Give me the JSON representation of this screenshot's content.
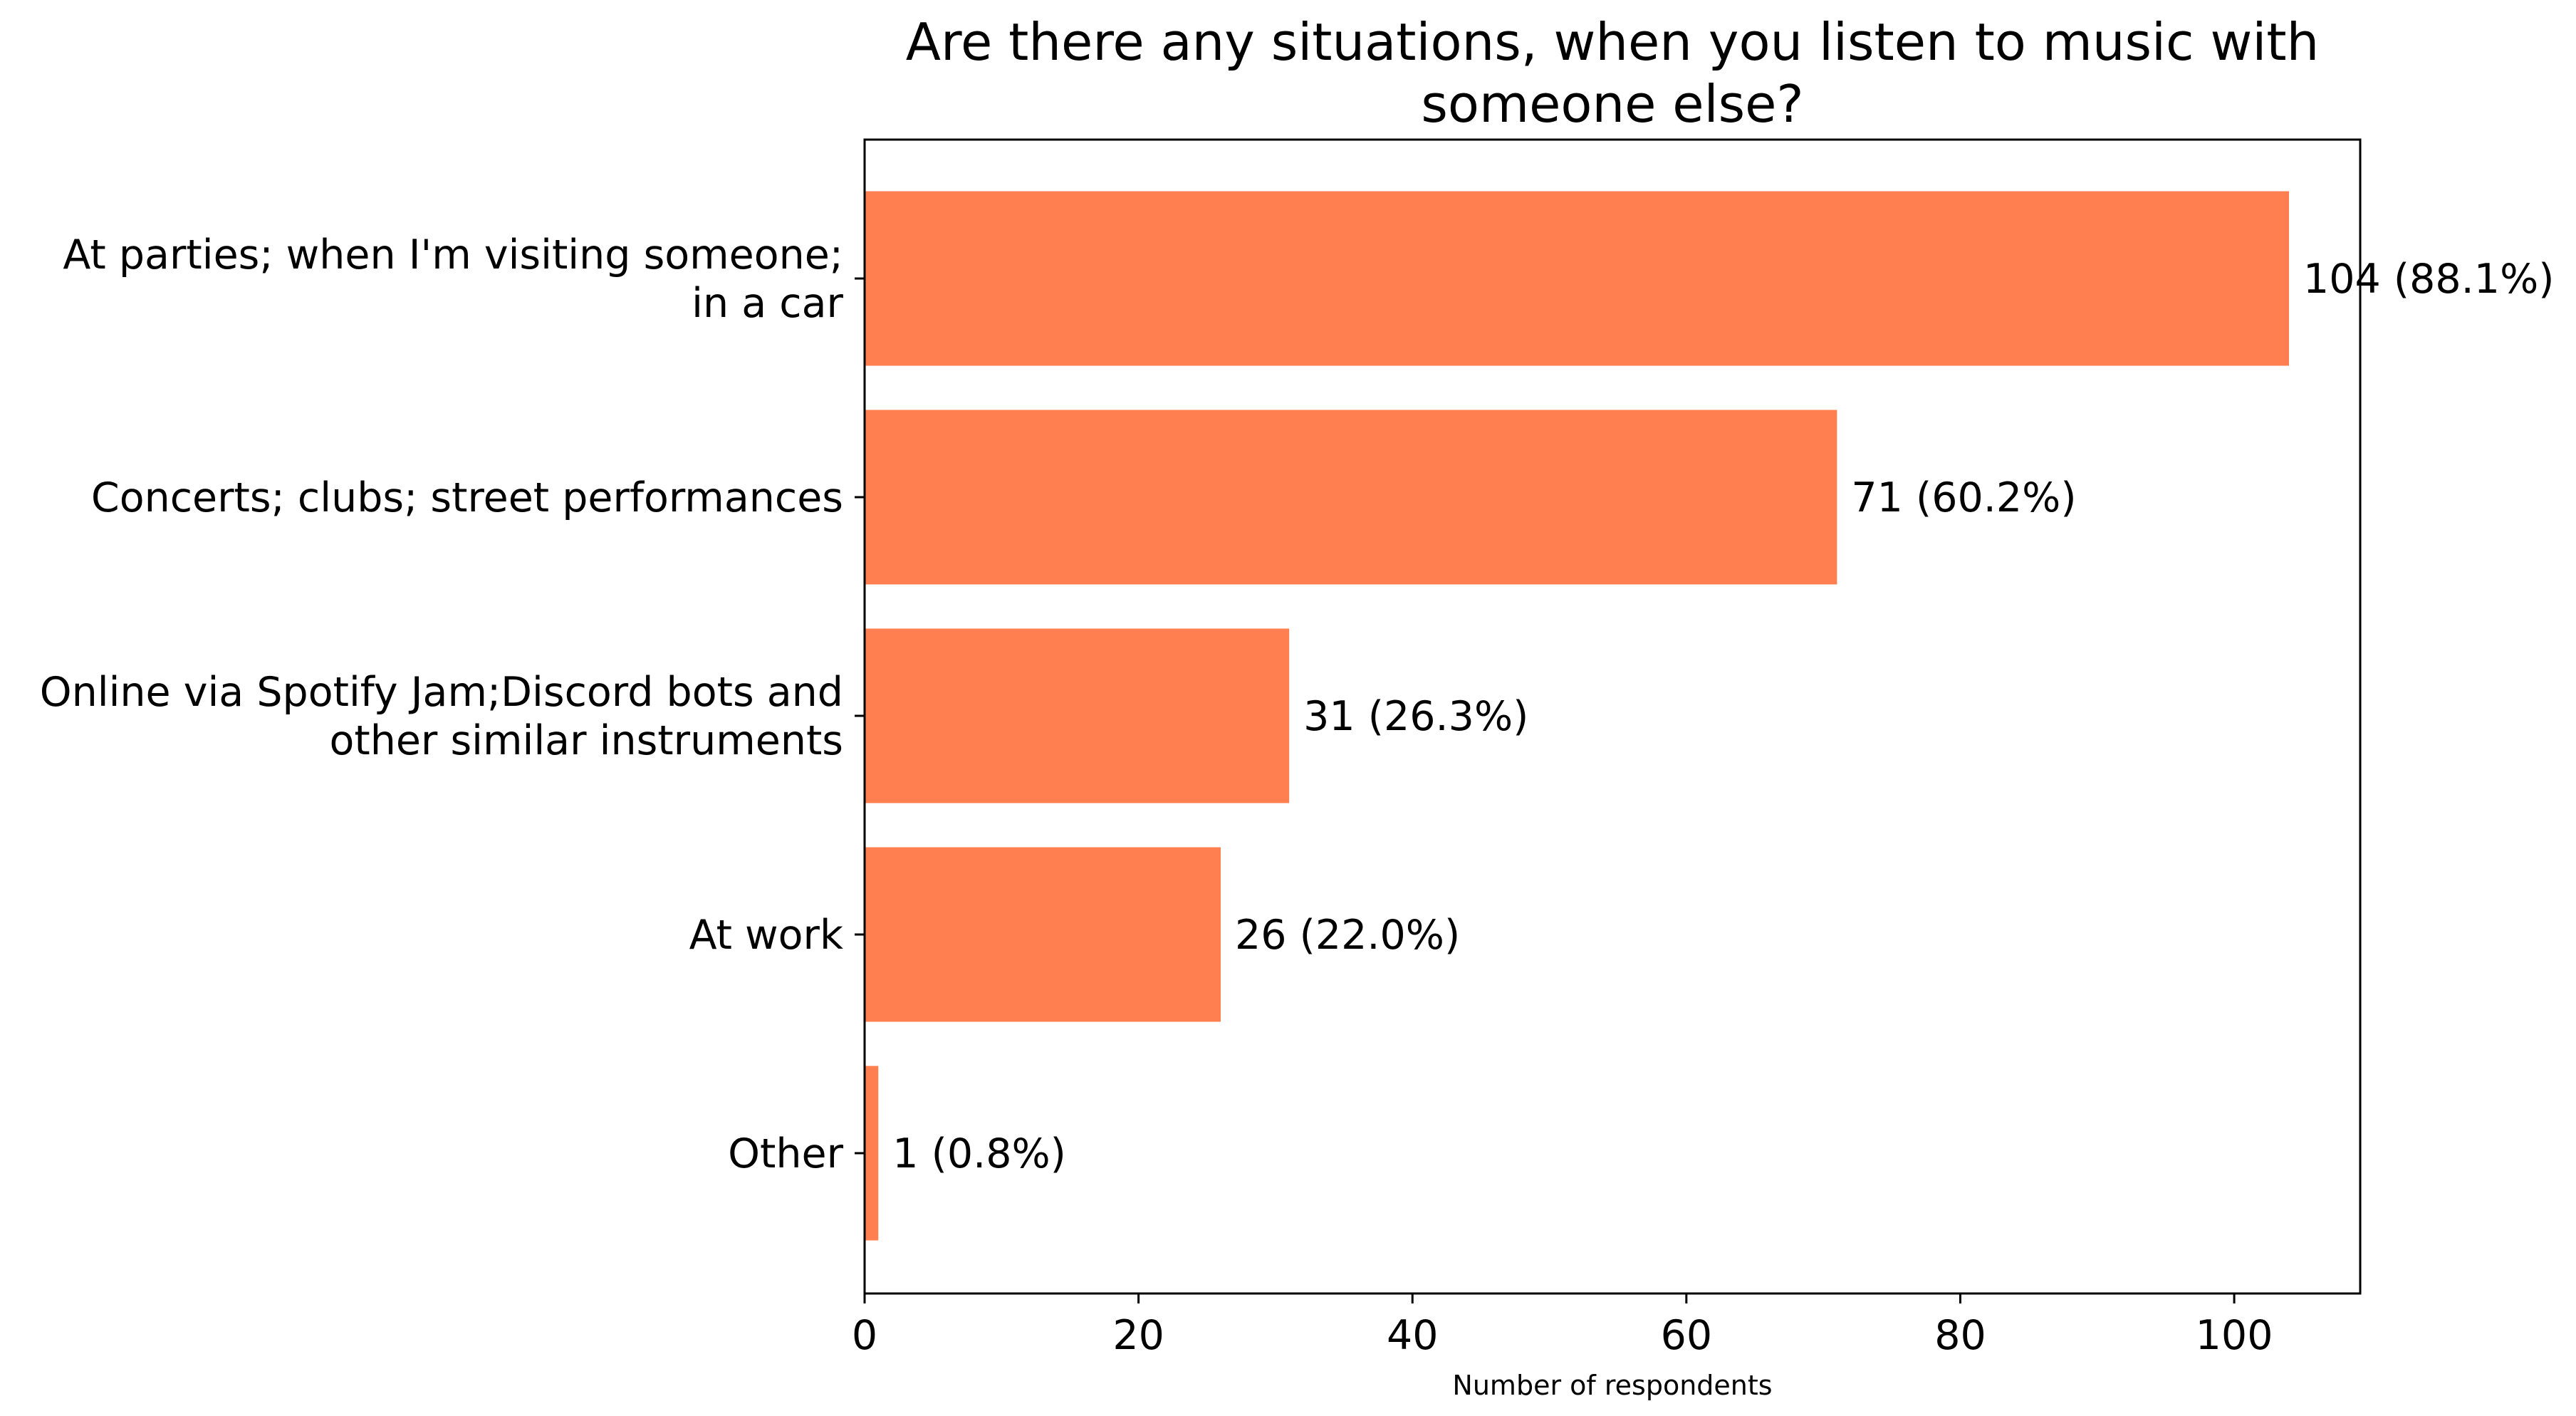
{
  "chart_data": {
    "type": "bar",
    "orientation": "horizontal",
    "title_lines": [
      "Are there any situations, when you listen to music with",
      "someone else?"
    ],
    "categories": [
      [
        "At parties; when I'm visiting someone;",
        "in a car"
      ],
      [
        "Concerts; clubs; street performances"
      ],
      [
        "Online via Spotify Jam;Discord bots and",
        "other similar instruments"
      ],
      [
        "At work"
      ],
      [
        "Other"
      ]
    ],
    "values": [
      104,
      71,
      31,
      26,
      1
    ],
    "value_labels": [
      "104 (88.1%)",
      "71 (60.2%)",
      "31 (26.3%)",
      "26 (22.0%)",
      "1 (0.8%)"
    ],
    "xlabel": "Number of respondents",
    "ylabel": "",
    "xlim": [
      0,
      109.2
    ],
    "xticks": [
      0,
      20,
      40,
      60,
      80,
      100
    ],
    "grid": false,
    "legend": "none",
    "bar_color": "#ff7f50"
  }
}
